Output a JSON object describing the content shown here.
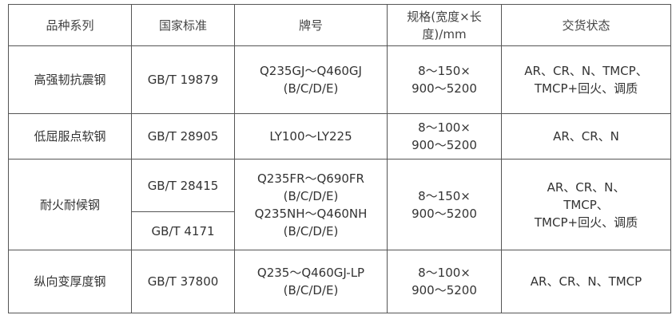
{
  "headers": [
    "品种系列",
    "国家标准",
    "牌号",
    "规格(宽度×长度)/mm",
    "交货状态"
  ],
  "header_lines": {
    "spec": [
      "规格(宽度×长",
      "度)/mm"
    ]
  },
  "rows": [
    {
      "series": "高强韧抗震钢",
      "standards": [
        "GB/T 19879"
      ],
      "grade": [
        "Q235GJ～Q460GJ",
        "(B/C/D/E)"
      ],
      "spec": [
        "8～150×",
        "900～5200"
      ],
      "delivery": [
        "AR、CR、N、TMCP、",
        "TMCP+回火、调质"
      ]
    },
    {
      "series": "低屈服点软钢",
      "standards": [
        "GB/T 28905"
      ],
      "grade": [
        "LY100～LY225"
      ],
      "spec": [
        "8～100×",
        "900～5200"
      ],
      "delivery": [
        "AR、CR、N"
      ]
    },
    {
      "series": "耐火耐候钢",
      "standards": [
        "GB/T 28415",
        "GB/T 4171"
      ],
      "grade": [
        "Q235FR～Q690FR",
        "(B/C/D/E)",
        "Q235NH～Q460NH",
        "(B/C/D/E)"
      ],
      "spec": [
        "8～150×",
        "900～5200"
      ],
      "delivery": [
        "AR、CR、N、",
        "TMCP、",
        "TMCP+回火、调质"
      ]
    },
    {
      "series": "纵向变厚度钢",
      "standards": [
        "GB/T 37800"
      ],
      "grade": [
        "Q235～Q460GJ-LP",
        "(B/C/D/E)"
      ],
      "spec": [
        "8～100×",
        "900～5200"
      ],
      "delivery": [
        "AR、CR、N、TMCP"
      ]
    }
  ]
}
